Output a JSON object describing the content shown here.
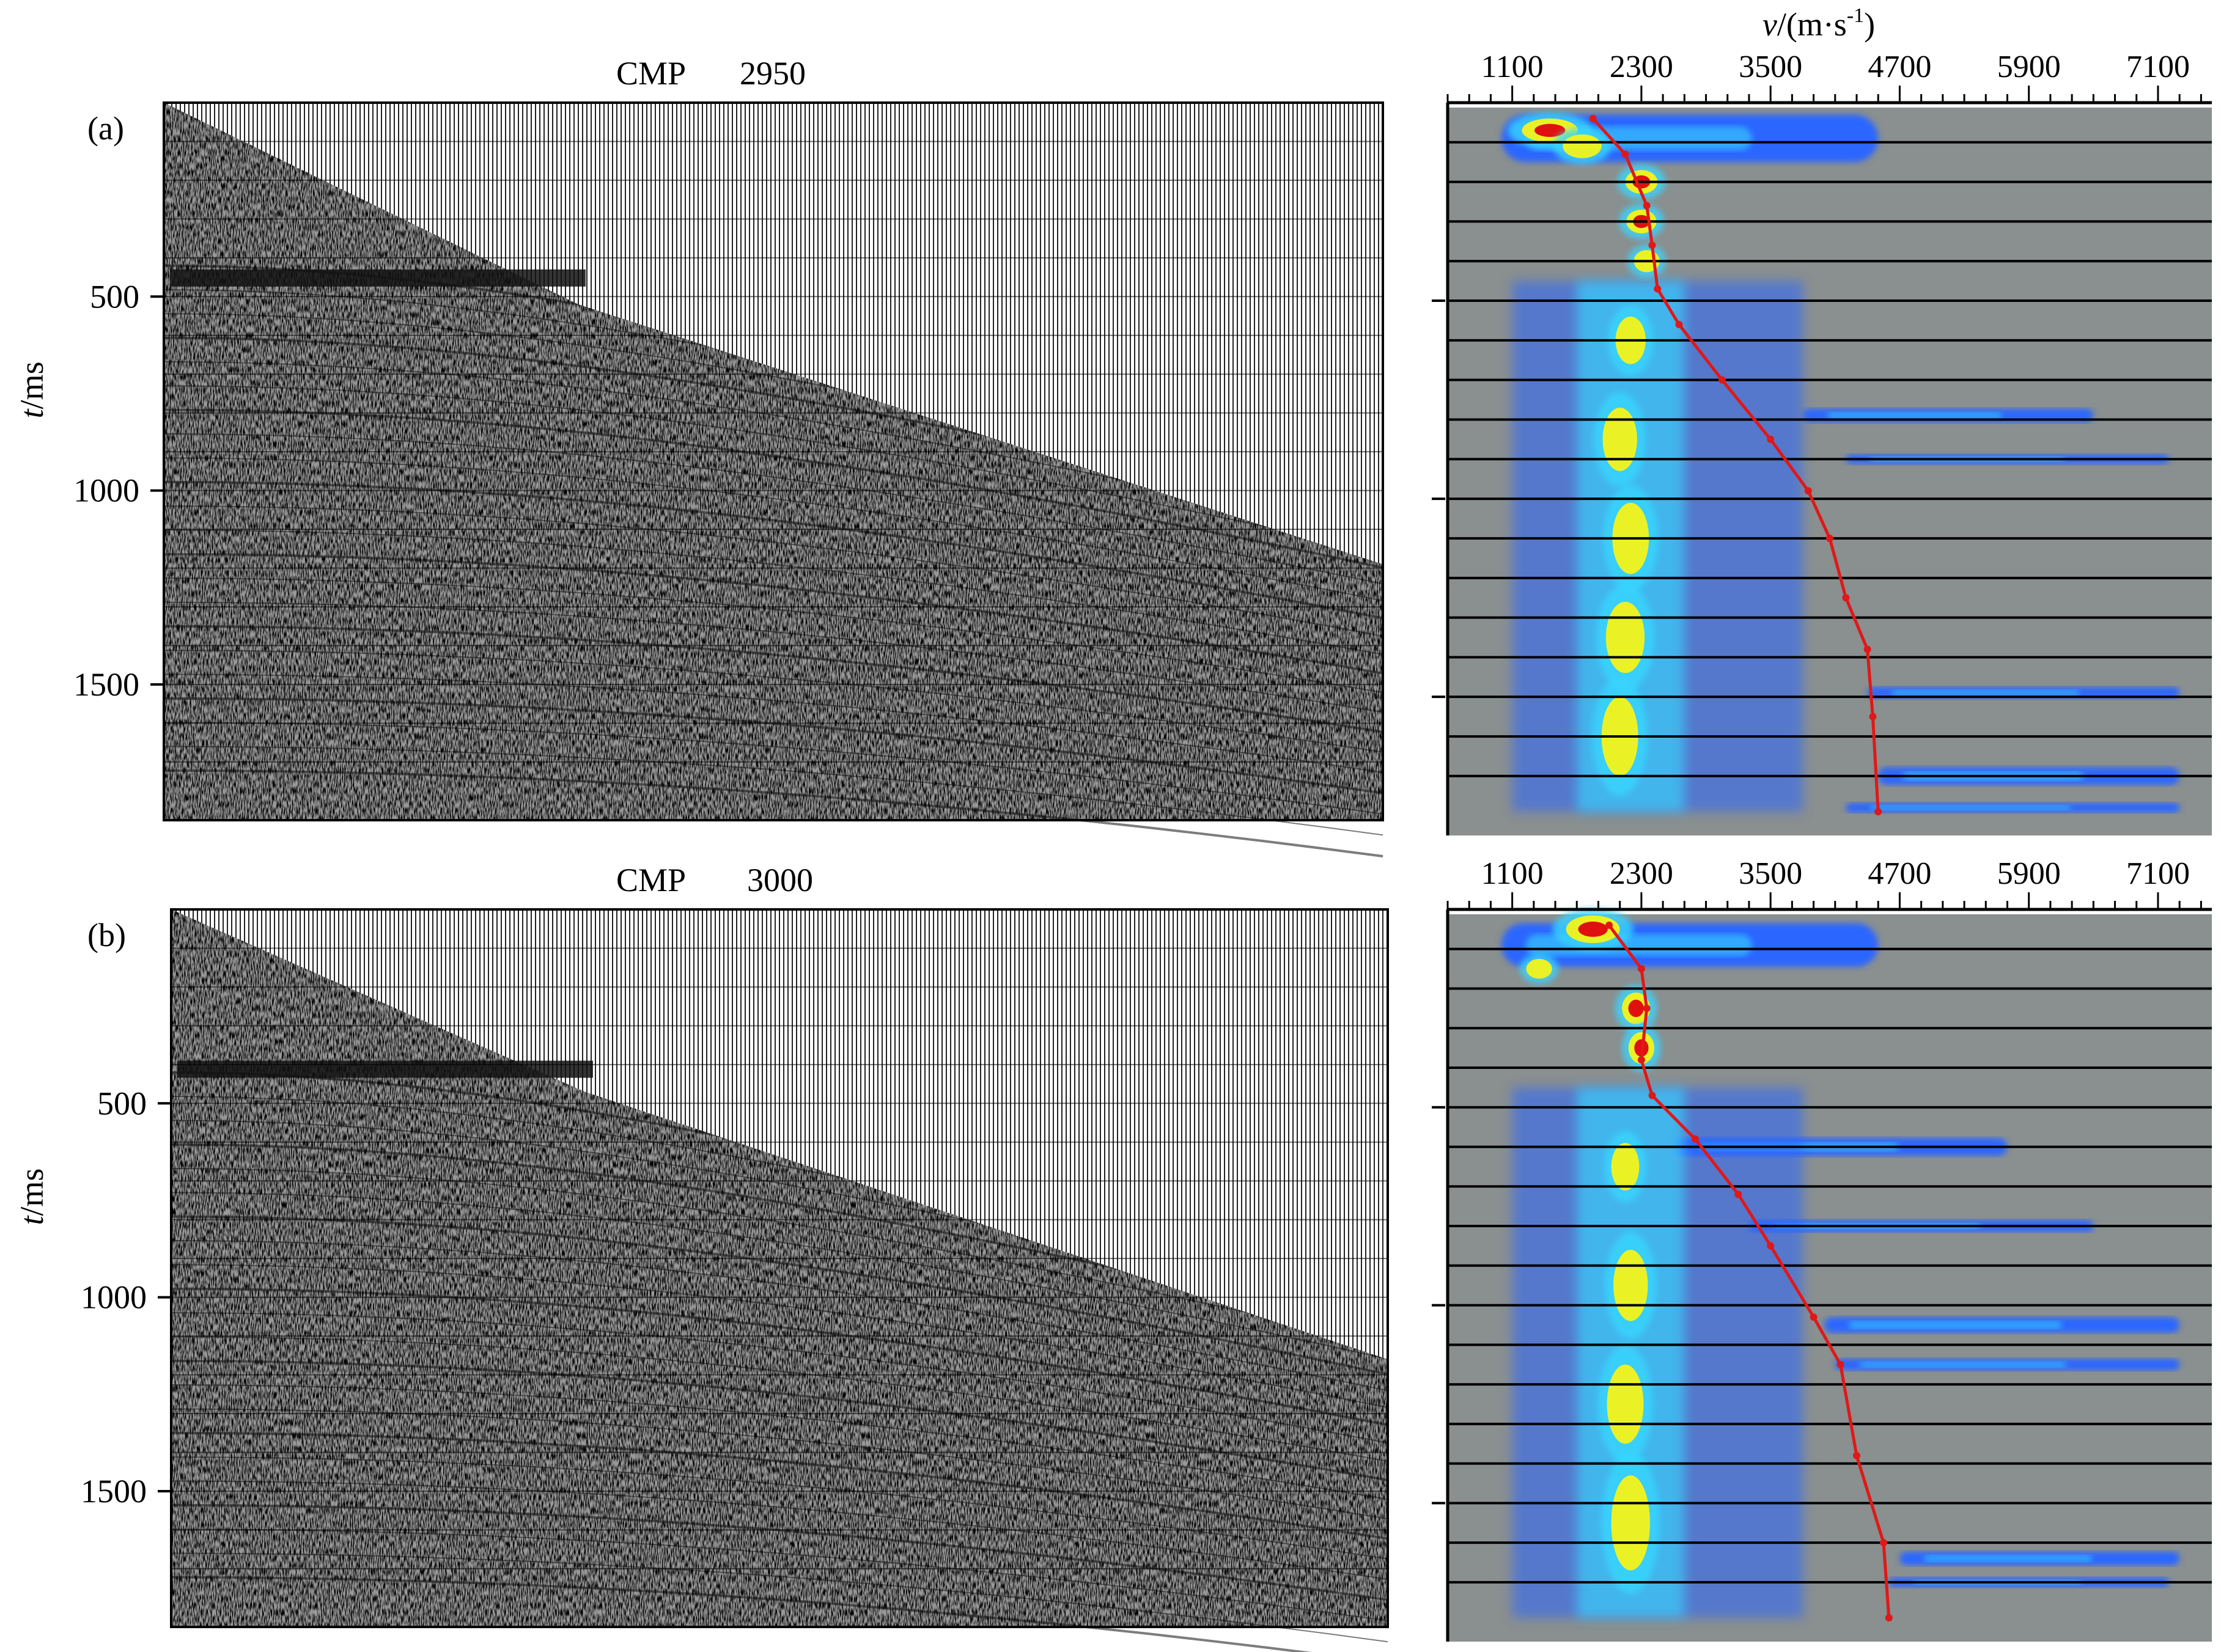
{
  "figure": {
    "y_axis_label_var": "t",
    "y_axis_label_unit": "/ms",
    "v_axis_label_var": "v",
    "v_axis_label_unit": "/(m·s",
    "v_axis_label_exp": "-1",
    "v_axis_label_close": ")"
  },
  "panels": [
    {
      "id": "a",
      "label": "(a)",
      "cmp_label": "CMP",
      "cmp_number": "2950",
      "time_ticks": [
        "500",
        "1000",
        "1500"
      ],
      "velocity_ticks": [
        "1100",
        "2300",
        "3500",
        "4700",
        "5900",
        "7100"
      ],
      "mute_front_ms": [
        [
          0,
          0
        ],
        [
          0.34,
          520
        ],
        [
          1.0,
          1190
        ]
      ],
      "picked_velocity": [
        [
          1850,
          40
        ],
        [
          2150,
          130
        ],
        [
          2350,
          260
        ],
        [
          2400,
          360
        ],
        [
          2450,
          470
        ],
        [
          2650,
          560
        ],
        [
          3050,
          700
        ],
        [
          3500,
          850
        ],
        [
          3850,
          980
        ],
        [
          4050,
          1100
        ],
        [
          4200,
          1250
        ],
        [
          4400,
          1380
        ],
        [
          4450,
          1550
        ],
        [
          4500,
          1790
        ]
      ],
      "semblance_blobs": [
        {
          "v": 1450,
          "t": 70,
          "rv": 260,
          "rt": 30,
          "level": "red"
        },
        {
          "v": 1750,
          "t": 110,
          "rv": 180,
          "rt": 30,
          "level": "yellow"
        },
        {
          "v": 2300,
          "t": 200,
          "rv": 150,
          "rt": 30,
          "level": "red"
        },
        {
          "v": 2300,
          "t": 300,
          "rv": 140,
          "rt": 30,
          "level": "red"
        },
        {
          "v": 2350,
          "t": 400,
          "rv": 120,
          "rt": 28,
          "level": "yellow"
        },
        {
          "v": 2200,
          "t": 600,
          "rv": 140,
          "rt": 60,
          "level": "yellow"
        },
        {
          "v": 2100,
          "t": 850,
          "rv": 160,
          "rt": 80,
          "level": "yellow"
        },
        {
          "v": 2200,
          "t": 1100,
          "rv": 170,
          "rt": 90,
          "level": "yellow"
        },
        {
          "v": 2150,
          "t": 1350,
          "rv": 180,
          "rt": 90,
          "level": "yellow"
        },
        {
          "v": 2100,
          "t": 1600,
          "rv": 170,
          "rt": 100,
          "level": "yellow"
        }
      ],
      "semblance_streaks": [
        {
          "v0": 1000,
          "v1": 4500,
          "t": 90,
          "h": 120
        },
        {
          "v0": 3800,
          "v1": 6500,
          "t": 790,
          "h": 35
        },
        {
          "v0": 4200,
          "v1": 7200,
          "t": 900,
          "h": 25
        },
        {
          "v0": 4400,
          "v1": 7300,
          "t": 1490,
          "h": 30
        },
        {
          "v0": 4500,
          "v1": 7300,
          "t": 1700,
          "h": 45
        },
        {
          "v0": 4200,
          "v1": 7300,
          "t": 1780,
          "h": 25
        }
      ],
      "h_lines_ms": [
        100,
        200,
        300,
        400,
        500,
        600,
        700,
        800,
        900,
        1000,
        1100,
        1200,
        1300,
        1400,
        1500,
        1600,
        1700
      ]
    },
    {
      "id": "b",
      "label": "(b)",
      "cmp_label": "CMP",
      "cmp_number": "3000",
      "time_ticks": [
        "500",
        "1000",
        "1500"
      ],
      "velocity_ticks": [
        "1100",
        "2300",
        "3500",
        "4700",
        "5900",
        "7100"
      ],
      "mute_front_ms": [
        [
          0,
          0
        ],
        [
          0.34,
          470
        ],
        [
          1.0,
          1160
        ]
      ],
      "picked_velocity": [
        [
          2000,
          40
        ],
        [
          2300,
          150
        ],
        [
          2350,
          250
        ],
        [
          2300,
          380
        ],
        [
          2400,
          470
        ],
        [
          2800,
          580
        ],
        [
          3200,
          720
        ],
        [
          3500,
          850
        ],
        [
          3900,
          1030
        ],
        [
          4150,
          1150
        ],
        [
          4300,
          1380
        ],
        [
          4550,
          1600
        ],
        [
          4600,
          1790
        ]
      ],
      "semblance_blobs": [
        {
          "v": 1850,
          "t": 50,
          "rv": 250,
          "rt": 35,
          "level": "red"
        },
        {
          "v": 1350,
          "t": 150,
          "rv": 120,
          "rt": 25,
          "level": "yellow"
        },
        {
          "v": 2250,
          "t": 250,
          "rv": 130,
          "rt": 40,
          "level": "red"
        },
        {
          "v": 2300,
          "t": 350,
          "rv": 120,
          "rt": 40,
          "level": "red"
        },
        {
          "v": 2150,
          "t": 650,
          "rv": 130,
          "rt": 60,
          "level": "yellow"
        },
        {
          "v": 2200,
          "t": 950,
          "rv": 160,
          "rt": 90,
          "level": "yellow"
        },
        {
          "v": 2150,
          "t": 1250,
          "rv": 170,
          "rt": 100,
          "level": "yellow"
        },
        {
          "v": 2200,
          "t": 1550,
          "rv": 180,
          "rt": 120,
          "level": "yellow"
        }
      ],
      "semblance_streaks": [
        {
          "v0": 1000,
          "v1": 4500,
          "t": 90,
          "h": 110
        },
        {
          "v0": 2600,
          "v1": 5700,
          "t": 600,
          "h": 45
        },
        {
          "v0": 3300,
          "v1": 6500,
          "t": 800,
          "h": 30
        },
        {
          "v0": 4000,
          "v1": 7300,
          "t": 1050,
          "h": 40
        },
        {
          "v0": 4100,
          "v1": 7300,
          "t": 1150,
          "h": 30
        },
        {
          "v0": 4700,
          "v1": 7300,
          "t": 1640,
          "h": 35
        },
        {
          "v0": 4600,
          "v1": 7200,
          "t": 1700,
          "h": 25
        }
      ],
      "h_lines_ms": [
        100,
        200,
        300,
        400,
        500,
        600,
        700,
        800,
        900,
        1000,
        1100,
        1200,
        1300,
        1400,
        1500,
        1600,
        1700
      ]
    }
  ],
  "colors": {
    "semblance_bg": "#8a8f8f",
    "blue": "#2a66ff",
    "cyan": "#38d6ff",
    "yellow": "#f3f31a",
    "red": "#e01010",
    "pick_line": "#e01818"
  }
}
